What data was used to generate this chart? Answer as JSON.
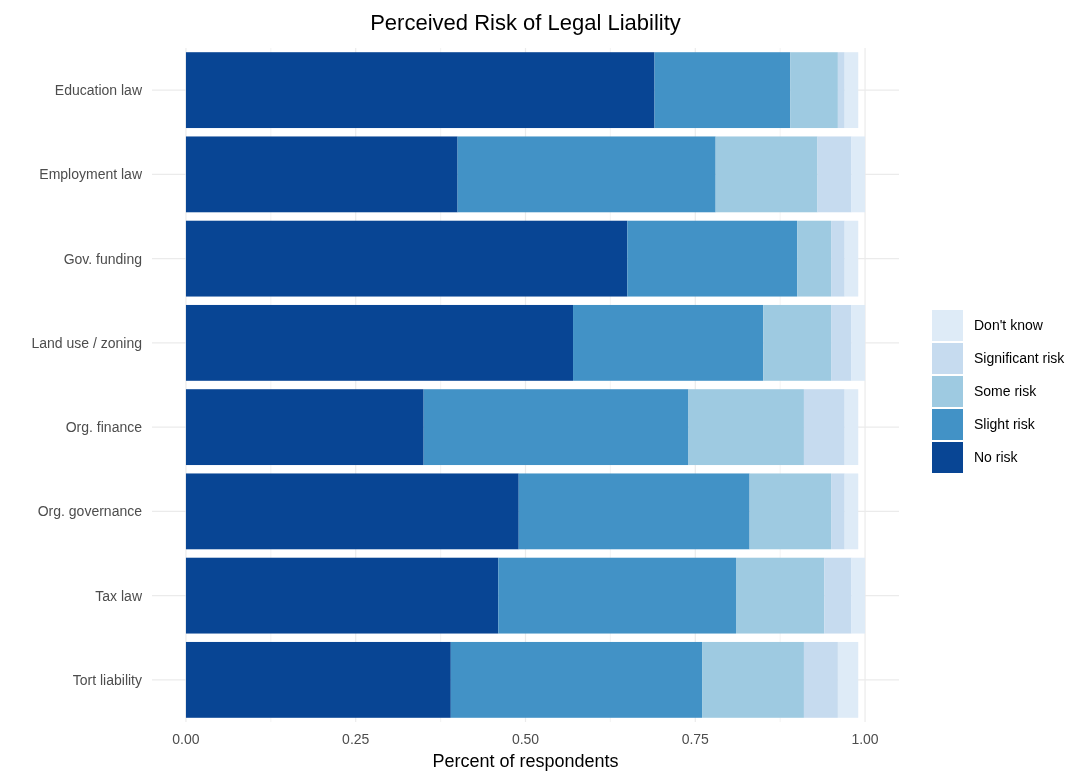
{
  "chart_data": {
    "type": "bar",
    "orientation": "horizontal",
    "stacked": true,
    "title": "Perceived Risk of Legal Liability",
    "xlabel": "Percent of respondents",
    "categories": [
      "Education law",
      "Employment law",
      "Gov. funding",
      "Land use / zoning",
      "Org. finance",
      "Org. governance",
      "Tax law",
      "Tort liability"
    ],
    "series": [
      {
        "name": "No risk",
        "color": "#084594",
        "values": [
          0.69,
          0.4,
          0.65,
          0.57,
          0.35,
          0.49,
          0.46,
          0.39
        ]
      },
      {
        "name": "Slight risk",
        "color": "#4292c6",
        "values": [
          0.2,
          0.38,
          0.25,
          0.28,
          0.39,
          0.34,
          0.35,
          0.37
        ]
      },
      {
        "name": "Some risk",
        "color": "#9ecae1",
        "values": [
          0.07,
          0.15,
          0.05,
          0.1,
          0.17,
          0.12,
          0.13,
          0.15
        ]
      },
      {
        "name": "Significant risk",
        "color": "#c6dbef",
        "values": [
          0.01,
          0.05,
          0.02,
          0.03,
          0.06,
          0.02,
          0.04,
          0.05
        ]
      },
      {
        "name": "Don't know",
        "color": "#deebf7",
        "values": [
          0.02,
          0.02,
          0.02,
          0.02,
          0.02,
          0.02,
          0.02,
          0.03
        ]
      }
    ],
    "xlim": [
      -0.05,
      1.05
    ],
    "xticks": [
      {
        "value": 0,
        "label": "0.00"
      },
      {
        "value": 0.125,
        "label": null
      },
      {
        "value": 0.25,
        "label": "0.25"
      },
      {
        "value": 0.375,
        "label": null
      },
      {
        "value": 0.5,
        "label": "0.50"
      },
      {
        "value": 0.625,
        "label": null
      },
      {
        "value": 0.75,
        "label": "0.75"
      },
      {
        "value": 0.875,
        "label": null
      },
      {
        "value": 1,
        "label": "1.00"
      }
    ],
    "grid": true,
    "legend": "right"
  }
}
